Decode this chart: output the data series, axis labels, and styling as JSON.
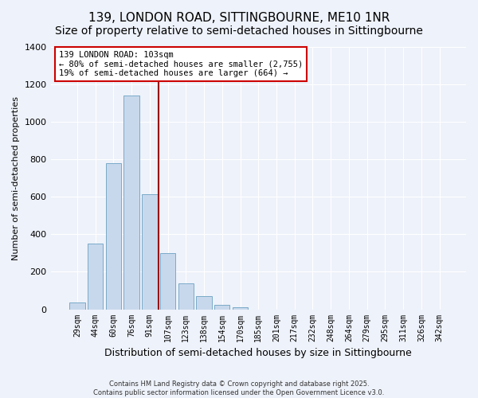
{
  "title": "139, LONDON ROAD, SITTINGBOURNE, ME10 1NR",
  "subtitle": "Size of property relative to semi-detached houses in Sittingbourne",
  "xlabel": "Distribution of semi-detached houses by size in Sittingbourne",
  "ylabel": "Number of semi-detached properties",
  "bar_labels": [
    "29sqm",
    "44sqm",
    "60sqm",
    "76sqm",
    "91sqm",
    "107sqm",
    "123sqm",
    "138sqm",
    "154sqm",
    "170sqm",
    "185sqm",
    "201sqm",
    "217sqm",
    "232sqm",
    "248sqm",
    "264sqm",
    "279sqm",
    "295sqm",
    "311sqm",
    "326sqm",
    "342sqm"
  ],
  "bar_values": [
    35,
    350,
    780,
    1140,
    615,
    300,
    140,
    70,
    25,
    10,
    0,
    0,
    0,
    0,
    0,
    0,
    0,
    0,
    0,
    0,
    0
  ],
  "bar_color": "#c8d8ec",
  "bar_edge_color": "#7aaac8",
  "vline_color": "#990000",
  "annotation_title": "139 LONDON ROAD: 103sqm",
  "annotation_line1": "← 80% of semi-detached houses are smaller (2,755)",
  "annotation_line2": "19% of semi-detached houses are larger (664) →",
  "annotation_box_facecolor": "#ffffff",
  "annotation_box_edgecolor": "#cc0000",
  "ylim": [
    0,
    1400
  ],
  "yticks": [
    0,
    200,
    400,
    600,
    800,
    1000,
    1200,
    1400
  ],
  "background_color": "#eef2fa",
  "plot_bg_color": "#eef2fa",
  "grid_color": "#ffffff",
  "footer_line1": "Contains HM Land Registry data © Crown copyright and database right 2025.",
  "footer_line2": "Contains public sector information licensed under the Open Government Licence v3.0.",
  "title_fontsize": 11,
  "subtitle_fontsize": 10,
  "ylabel_fontsize": 8,
  "xlabel_fontsize": 9
}
